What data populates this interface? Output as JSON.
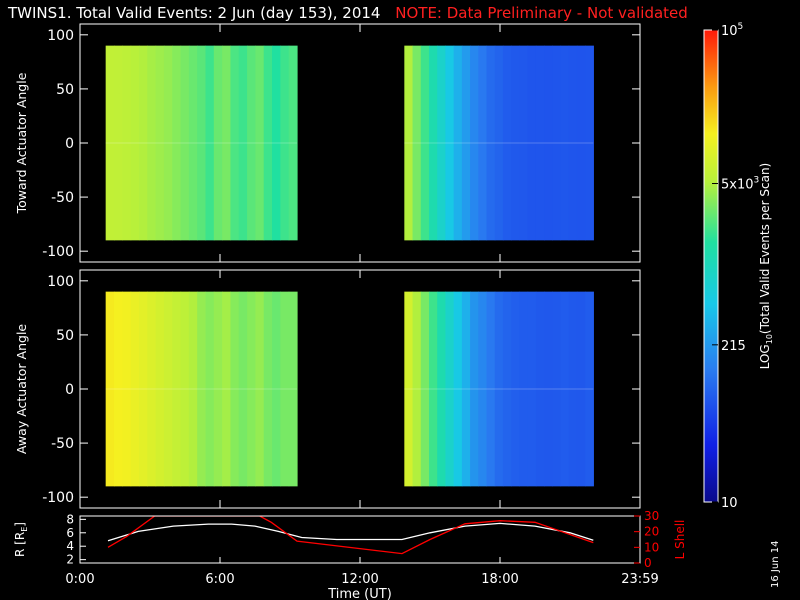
{
  "header": {
    "title": "TWINS1. Total Valid Events:  2 Jun (day 153), 2014",
    "note": "NOTE: Data Preliminary - Not validated"
  },
  "footer": {
    "date_stamp": "16 Jun 14"
  },
  "colors": {
    "background": "#000000",
    "axes": "#ffffff",
    "note": "#ff2020",
    "lshell_line": "#ff0000",
    "radius_line": "#ffffff"
  },
  "chart_data": [
    {
      "type": "heatmap",
      "panel": "toward",
      "ylabel": "Toward Actuator Angle",
      "xlim": [
        0,
        24
      ],
      "ylim": [
        -110,
        110
      ],
      "yticks": [
        100,
        50,
        0,
        -50,
        -100
      ],
      "colorscale": "rainbow (log)",
      "segments": [
        {
          "t_start": 1.1,
          "t_end": 9.3,
          "column_log10_values": [
            3.78,
            3.77,
            3.75,
            3.72,
            3.7,
            3.66,
            3.63,
            3.6,
            3.55,
            3.5,
            3.45,
            3.4,
            3.3,
            3.45,
            3.5,
            3.35,
            3.3,
            3.4,
            3.45,
            3.3,
            3.2,
            3.3,
            3.35
          ]
        },
        {
          "t_start": 13.9,
          "t_end": 22.0,
          "column_log10_values": [
            3.7,
            3.5,
            3.3,
            3.1,
            2.9,
            2.7,
            2.5,
            2.35,
            2.2,
            2.1,
            2.0,
            1.95,
            1.9,
            1.88,
            1.87,
            1.85,
            1.85,
            1.84,
            1.85,
            1.86,
            1.85,
            1.84,
            1.85
          ]
        }
      ]
    },
    {
      "type": "heatmap",
      "panel": "away",
      "ylabel": "Away Actuator Angle",
      "xlim": [
        0,
        24
      ],
      "ylim": [
        -110,
        110
      ],
      "yticks": [
        100,
        50,
        0,
        -50,
        -100
      ],
      "colorscale": "rainbow (log)",
      "segments": [
        {
          "t_start": 1.1,
          "t_end": 9.3,
          "column_log10_values": [
            4.15,
            4.12,
            4.1,
            4.05,
            4.0,
            3.95,
            3.9,
            3.85,
            3.8,
            3.75,
            3.7,
            3.6,
            3.55,
            3.6,
            3.65,
            3.55,
            3.5,
            3.55,
            3.6,
            3.5,
            3.45,
            3.5,
            3.5
          ]
        },
        {
          "t_start": 13.9,
          "t_end": 22.0,
          "column_log10_values": [
            3.9,
            3.7,
            3.5,
            3.3,
            3.1,
            2.9,
            2.7,
            2.5,
            2.3,
            2.2,
            2.1,
            2.0,
            1.95,
            1.92,
            1.9,
            1.9,
            1.88,
            1.87,
            1.88,
            1.9,
            1.88,
            1.87,
            1.9
          ]
        }
      ]
    },
    {
      "type": "line",
      "panel": "orbit",
      "xlabel": "Time (UT)",
      "xlim": [
        0,
        24
      ],
      "xticks": [
        "0:00",
        "6:00",
        "12:00",
        "18:00",
        "23:59"
      ],
      "xtick_values": [
        0,
        6,
        12,
        18,
        24
      ],
      "left_axis": {
        "label": "R [RE]",
        "label_main": "R [R",
        "label_sub": "E",
        "label_end": "]",
        "ylim": [
          1.5,
          8.5
        ],
        "ticks": [
          2,
          4,
          6,
          8
        ]
      },
      "right_axis": {
        "label": "L Shell",
        "ylim": [
          0,
          30
        ],
        "ticks": [
          0,
          10,
          20,
          30
        ]
      },
      "series": [
        {
          "axis": "left",
          "x": [
            1.2,
            2.5,
            4.0,
            5.5,
            6.5,
            7.5,
            8.5,
            9.5,
            11.0,
            12.5,
            13.8,
            15.0,
            16.5,
            18.0,
            19.5,
            21.0,
            22.0
          ],
          "values": [
            4.8,
            6.2,
            7.0,
            7.3,
            7.3,
            7.0,
            6.2,
            5.3,
            5.0,
            5.0,
            5.0,
            6.0,
            7.0,
            7.4,
            7.0,
            6.0,
            4.9
          ]
        },
        {
          "axis": "right",
          "x": [
            1.2,
            2.0,
            3.2,
            7.7,
            8.2,
            9.3,
            13.8,
            15.0,
            16.5,
            18.0,
            19.5,
            22.0
          ],
          "values": [
            10,
            17,
            30,
            30,
            26,
            14,
            6,
            15,
            25,
            27,
            26,
            13
          ]
        }
      ]
    },
    {
      "type": "colorbar",
      "label": "LOG10(Total Valid Events per Scan)",
      "label_parts": [
        "LOG",
        "10",
        "(Total Valid Events per Scan)"
      ],
      "range_log10": [
        1,
        5
      ],
      "ticks": [
        {
          "value_log10": 5,
          "label": "10",
          "sup": "5"
        },
        {
          "value_log10": 3.699,
          "label": "5x10",
          "sup": "3"
        },
        {
          "value_log10": 2.332,
          "label": "215",
          "sup": ""
        },
        {
          "value_log10": 1,
          "label": "10",
          "sup": ""
        }
      ]
    }
  ]
}
